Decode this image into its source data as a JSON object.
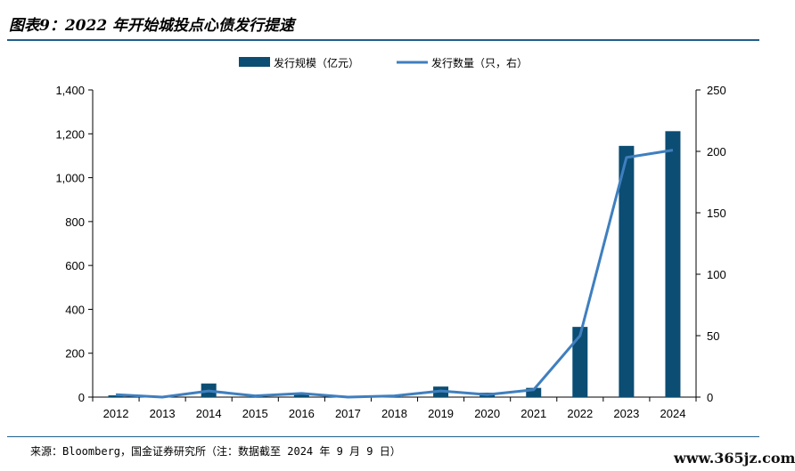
{
  "title": "图表9：2022 年开始城投点心债发行提速",
  "source": "来源：Bloomberg，国金证券研究所（注：数据截至 2024 年 9 月 9 日）",
  "watermark": "www.365jz.com",
  "colors": {
    "bar": "#0b4d73",
    "line": "#3f7fbf",
    "rule": "#1f5f8b"
  },
  "chart_data": {
    "type": "bar",
    "categories": [
      "2012",
      "2013",
      "2014",
      "2015",
      "2016",
      "2017",
      "2018",
      "2019",
      "2020",
      "2021",
      "2022",
      "2023",
      "2024"
    ],
    "series": [
      {
        "name": "发行规模（亿元）",
        "type": "bar",
        "axis": "left",
        "values": [
          8,
          0,
          62,
          2,
          12,
          0,
          2,
          48,
          20,
          42,
          320,
          1145,
          1212
        ]
      },
      {
        "name": "发行数量（只，右）",
        "type": "line",
        "axis": "right",
        "values": [
          2,
          0,
          5,
          1,
          3,
          0,
          1,
          5,
          2,
          6,
          50,
          195,
          201
        ]
      }
    ],
    "ylim_left": [
      0,
      1400
    ],
    "ylim_right": [
      0,
      250
    ],
    "yticks_left": [
      "0",
      "200",
      "400",
      "600",
      "800",
      "1,000",
      "1,200",
      "1,400"
    ],
    "yticks_right": [
      "0",
      "50",
      "100",
      "150",
      "200",
      "250"
    ],
    "legend_position": "top-center",
    "grid": false
  }
}
